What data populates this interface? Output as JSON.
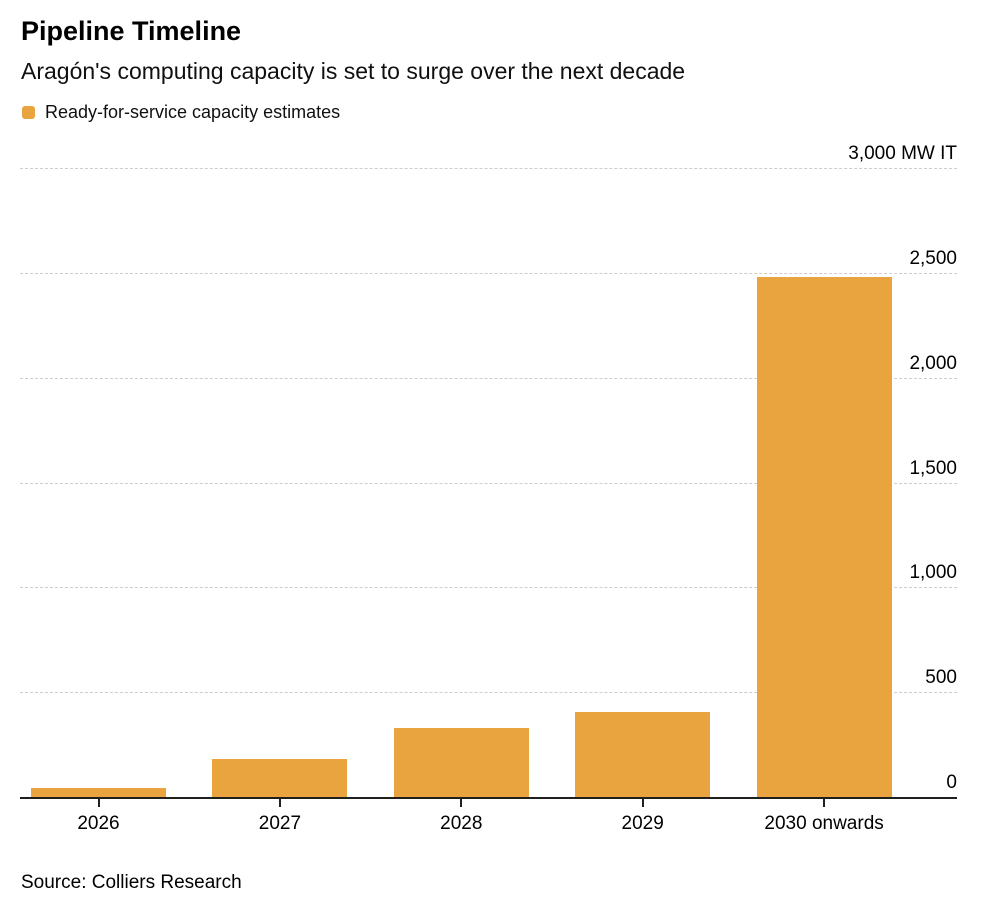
{
  "header": {
    "title": "Pipeline Timeline",
    "subtitle": "Aragón's computing capacity is set to surge over the next decade"
  },
  "legend": {
    "label": "Ready-for-service capacity estimates",
    "swatch_color": "#E9A440"
  },
  "chart_data": {
    "type": "bar",
    "title": "Pipeline Timeline",
    "subtitle": "Aragón's computing capacity is set to surge over the next decade",
    "series_name": "Ready-for-service capacity estimates",
    "categories": [
      "2026",
      "2027",
      "2028",
      "2029",
      "2030 onwards"
    ],
    "values": [
      45,
      180,
      330,
      405,
      2480
    ],
    "unit_label": "3,000 MW IT",
    "xlabel": "",
    "ylabel": "MW IT",
    "ylim": [
      0,
      3000
    ],
    "yticks": [
      {
        "value": 3000,
        "label": "3,000 MW IT"
      },
      {
        "value": 2500,
        "label": "2,500"
      },
      {
        "value": 2000,
        "label": "2,000"
      },
      {
        "value": 1500,
        "label": "1,500"
      },
      {
        "value": 1000,
        "label": "1,000"
      },
      {
        "value": 500,
        "label": "500"
      },
      {
        "value": 0,
        "label": "0"
      }
    ],
    "grid": true,
    "legend_position": "top-left",
    "ytick_position": "right",
    "bar_color": "#E9A440",
    "axis_color": "#1f1f1f",
    "gridline_color": "#cdcdcd"
  },
  "footer": {
    "source": "Source: Colliers Research"
  }
}
